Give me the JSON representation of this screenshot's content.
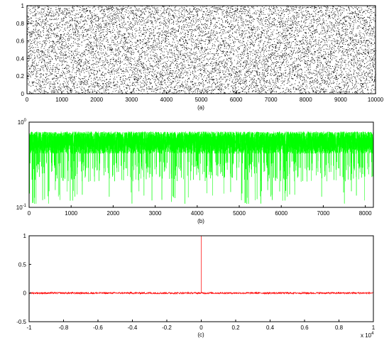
{
  "chart_data": [
    {
      "type": "scatter",
      "caption": "(a)",
      "xlim": [
        0,
        10000
      ],
      "ylim": [
        0,
        1
      ],
      "xticks": [
        "0",
        "1000",
        "2000",
        "3000",
        "4000",
        "5000",
        "6000",
        "7000",
        "8000",
        "9000",
        "10000"
      ],
      "yticks": [
        "0",
        "0.2",
        "0.4",
        "0.6",
        "0.8",
        "1"
      ],
      "n_points": 10000,
      "distribution": "uniform random in [0,1]",
      "marker_color": "#000000",
      "grid": false
    },
    {
      "type": "line",
      "caption": "(b)",
      "xlim": [
        0,
        8192
      ],
      "ylim_log10": [
        -1,
        0
      ],
      "y_scale": "log",
      "xticks": [
        "0",
        "1000",
        "2000",
        "3000",
        "4000",
        "5000",
        "6000",
        "7000",
        "8000"
      ],
      "yticks": [
        {
          "base": "10",
          "exp": "0"
        },
        {
          "base": "10",
          "exp": "-1"
        }
      ],
      "n_points": 8192,
      "typical_value_range": [
        0.3,
        0.8
      ],
      "min_value_approx": 0.11,
      "line_color": "#00ff00",
      "grid": false
    },
    {
      "type": "line",
      "caption": "(c)",
      "xlim": [
        -1,
        1
      ],
      "x_multiplier": {
        "text": "x 10",
        "exp": "4"
      },
      "ylim": [
        -0.5,
        1
      ],
      "xticks": [
        "-1",
        "-0.8",
        "-0.6",
        "-0.4",
        "-0.2",
        "0",
        "0.2",
        "0.4",
        "0.6",
        "0.8",
        "1"
      ],
      "yticks": [
        "-0.5",
        "0",
        "0.5",
        "1"
      ],
      "peak": {
        "x": 0,
        "y": 1
      },
      "baseline_noise_amplitude": 0.015,
      "line_color": "#ff0000",
      "grid": false
    }
  ]
}
